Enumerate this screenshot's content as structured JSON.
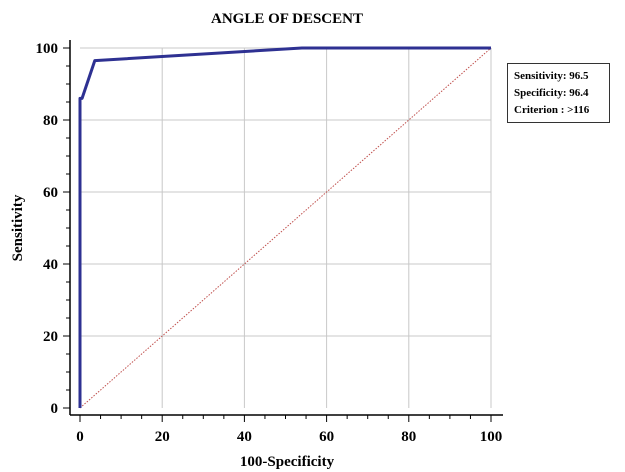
{
  "chart_data": {
    "type": "line",
    "title": "ANGLE OF DESCENT",
    "xlabel": "100-Specificity",
    "ylabel": "Sensitivity",
    "xlim": [
      0,
      100
    ],
    "ylim": [
      0,
      100
    ],
    "x_ticks": [
      0,
      20,
      40,
      60,
      80,
      100
    ],
    "y_ticks": [
      0,
      20,
      40,
      60,
      80,
      100
    ],
    "x_tick_labels": [
      "0",
      "20",
      "40",
      "60",
      "80",
      "100"
    ],
    "y_tick_labels": [
      "0",
      "20",
      "40",
      "60",
      "80",
      "100"
    ],
    "grid": true,
    "series": [
      {
        "role": "roc-curve",
        "color": "#2e3192",
        "points": [
          {
            "x": 0,
            "y": 0
          },
          {
            "x": 0,
            "y": 86
          },
          {
            "x": 0.5,
            "y": 86
          },
          {
            "x": 3.6,
            "y": 96.5
          },
          {
            "x": 54,
            "y": 100
          },
          {
            "x": 100,
            "y": 100
          }
        ]
      },
      {
        "role": "reference-diagonal",
        "color": "#c0504d",
        "points": [
          {
            "x": 0,
            "y": 0
          },
          {
            "x": 100,
            "y": 100
          }
        ]
      }
    ],
    "annotations": [
      "Sensitivity: 96.5",
      "Specificity: 96.4",
      "Criterion : >116"
    ]
  }
}
